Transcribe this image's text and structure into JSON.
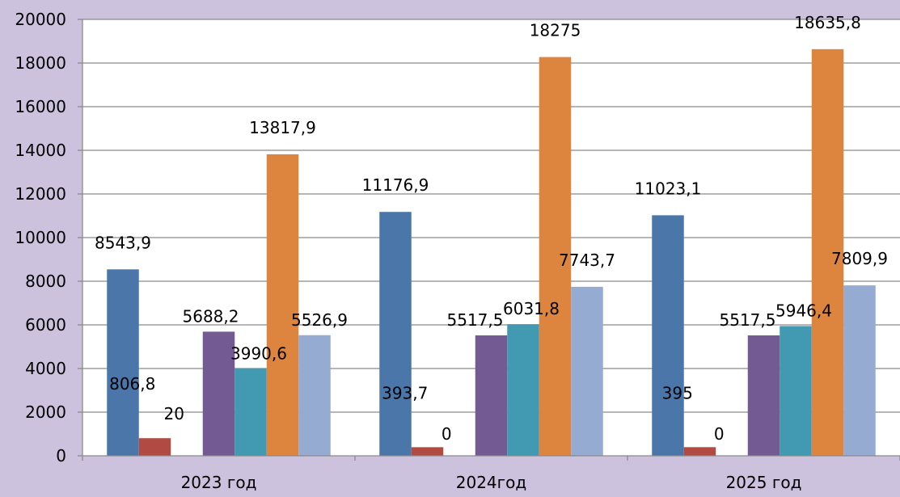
{
  "chart_data": {
    "type": "bar",
    "categories": [
      "2023 год",
      "2024год",
      "2025 год"
    ],
    "series": [
      {
        "values": [
          8543.9,
          11176.9,
          11023.1
        ],
        "labels": [
          "8543,9",
          "11176,9",
          "11023,1"
        ],
        "color": "#4a76aa"
      },
      {
        "values": [
          806.8,
          393.7,
          395
        ],
        "labels": [
          "806,8",
          "393,7",
          "395"
        ],
        "color": "#b04a43"
      },
      {
        "values": [
          20,
          0,
          0
        ],
        "labels": [
          "20",
          "0",
          "0"
        ],
        "color": "#8eae4e"
      },
      {
        "values": [
          5688.2,
          5517.5,
          5517.5
        ],
        "labels": [
          "5688,2",
          "5517,5",
          "5517,5"
        ],
        "color": "#735a92"
      },
      {
        "values": [
          3990.6,
          6031.8,
          5946.4
        ],
        "labels": [
          "3990,6",
          "6031,8",
          "5946,4"
        ],
        "color": "#4299b2"
      },
      {
        "values": [
          13817.9,
          18275,
          18635.8
        ],
        "labels": [
          "13817,9",
          "18275",
          "18635,8"
        ],
        "color": "#dd843f"
      },
      {
        "values": [
          5526.9,
          7743.7,
          7809.9
        ],
        "labels": [
          "5526,9",
          "7743,7",
          "7809,9"
        ],
        "color": "#96abd1"
      }
    ],
    "yticks": [
      "0",
      "2000",
      "4000",
      "6000",
      "8000",
      "10000",
      "12000",
      "14000",
      "16000",
      "18000",
      "20000"
    ],
    "ylim": [
      0,
      20000
    ],
    "grid": true,
    "legend": "none"
  },
  "colors": {
    "background": "#ccc2dd",
    "plot_area": "#ffffff",
    "gridline": "#8a8a8a",
    "text": "#000000"
  }
}
